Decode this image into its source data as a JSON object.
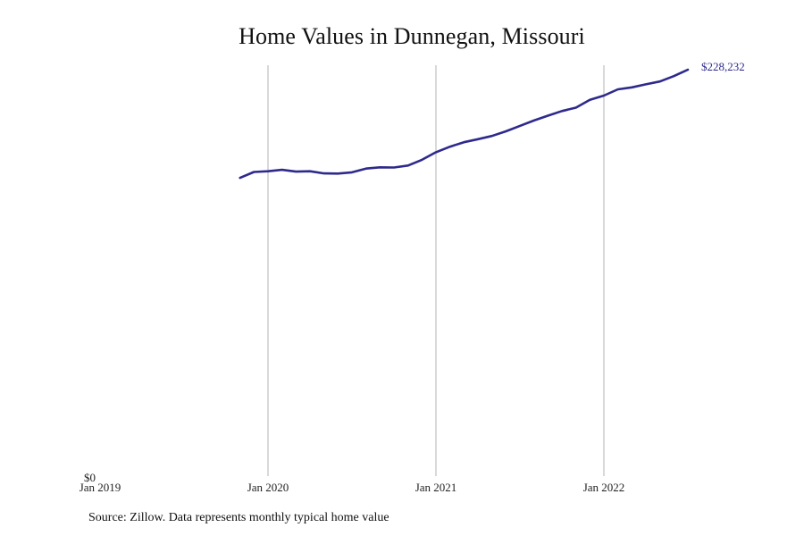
{
  "title": "Home Values in Dunnegan, Missouri",
  "source": "Source: Zillow. Data represents monthly typical home value",
  "colors": {
    "line": "#2e2a8c",
    "grid": "#b3b3b3",
    "text": "#111111"
  },
  "chart_data": {
    "type": "line",
    "title": "Home Values in Dunnegan, Missouri",
    "xlabel": "",
    "ylabel": "",
    "xlim": [
      "2019-01",
      "2022-10"
    ],
    "ylim": [
      0,
      228232
    ],
    "grid": "vertical lines at year ticks",
    "y_tick_labels": [
      "$0"
    ],
    "x_ticks": [
      {
        "date": "2019-01",
        "label": "Jan 2019"
      },
      {
        "date": "2020-01",
        "label": "Jan 2020"
      },
      {
        "date": "2021-01",
        "label": "Jan 2021"
      },
      {
        "date": "2022-01",
        "label": "Jan 2022"
      }
    ],
    "end_label": "$228,232",
    "series": [
      {
        "points": [
          {
            "x": "2019-11",
            "y": 167500
          },
          {
            "x": "2019-12",
            "y": 170800
          },
          {
            "x": "2020-01",
            "y": 171200
          },
          {
            "x": "2020-02",
            "y": 172000
          },
          {
            "x": "2020-03",
            "y": 171000
          },
          {
            "x": "2020-04",
            "y": 171200
          },
          {
            "x": "2020-05",
            "y": 170000
          },
          {
            "x": "2020-06",
            "y": 169900
          },
          {
            "x": "2020-07",
            "y": 170600
          },
          {
            "x": "2020-08",
            "y": 172700
          },
          {
            "x": "2020-09",
            "y": 173400
          },
          {
            "x": "2020-10",
            "y": 173300
          },
          {
            "x": "2020-11",
            "y": 174400
          },
          {
            "x": "2020-12",
            "y": 177600
          },
          {
            "x": "2021-01",
            "y": 181900
          },
          {
            "x": "2021-02",
            "y": 185000
          },
          {
            "x": "2021-03",
            "y": 187500
          },
          {
            "x": "2021-04",
            "y": 189200
          },
          {
            "x": "2021-05",
            "y": 191000
          },
          {
            "x": "2021-06",
            "y": 193600
          },
          {
            "x": "2021-07",
            "y": 196700
          },
          {
            "x": "2021-08",
            "y": 199700
          },
          {
            "x": "2021-09",
            "y": 202400
          },
          {
            "x": "2021-10",
            "y": 205000
          },
          {
            "x": "2021-11",
            "y": 206900
          },
          {
            "x": "2021-12",
            "y": 211300
          },
          {
            "x": "2022-01",
            "y": 213700
          },
          {
            "x": "2022-02",
            "y": 217200
          },
          {
            "x": "2022-03",
            "y": 218300
          },
          {
            "x": "2022-04",
            "y": 220000
          },
          {
            "x": "2022-05",
            "y": 221600
          },
          {
            "x": "2022-06",
            "y": 224600
          },
          {
            "x": "2022-07",
            "y": 228232
          }
        ]
      }
    ]
  }
}
